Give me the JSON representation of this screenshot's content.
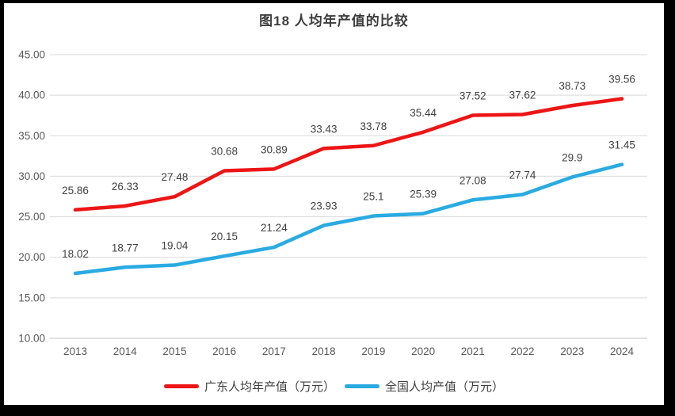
{
  "frame": {
    "border_color": "#000000",
    "background": "#ffffff"
  },
  "chart_data": {
    "type": "line",
    "title": "图18 人均年产值的比较",
    "categories": [
      "2013",
      "2014",
      "2015",
      "2016",
      "2017",
      "2018",
      "2019",
      "2020",
      "2021",
      "2022",
      "2023",
      "2024"
    ],
    "series": [
      {
        "name": "广东人均年产值（万元）",
        "color": "#ed1515",
        "values": [
          25.86,
          26.33,
          27.48,
          30.68,
          30.89,
          33.43,
          33.78,
          35.44,
          37.52,
          37.62,
          38.73,
          39.56
        ]
      },
      {
        "name": "全国人均产值（万元）",
        "color": "#29abe2",
        "values": [
          18.02,
          18.77,
          19.04,
          20.15,
          21.24,
          23.93,
          25.1,
          25.39,
          27.08,
          27.74,
          29.9,
          31.45
        ]
      }
    ],
    "xlabel": "",
    "ylabel": "",
    "ylim": [
      10,
      45
    ],
    "ytick_step": 5,
    "yticks": [
      "10.00",
      "15.00",
      "20.00",
      "25.00",
      "30.00",
      "35.00",
      "40.00",
      "45.00"
    ],
    "grid": true,
    "data_labels": true,
    "legend_position": "bottom"
  },
  "style": {
    "grid_color": "#d9d9d9",
    "baseline_color": "#bfbfbf",
    "axis_text_color": "#595959",
    "data_label_color": "#404040",
    "title_color": "#3d3d3d",
    "legend_text_color": "#3f3f3f"
  }
}
